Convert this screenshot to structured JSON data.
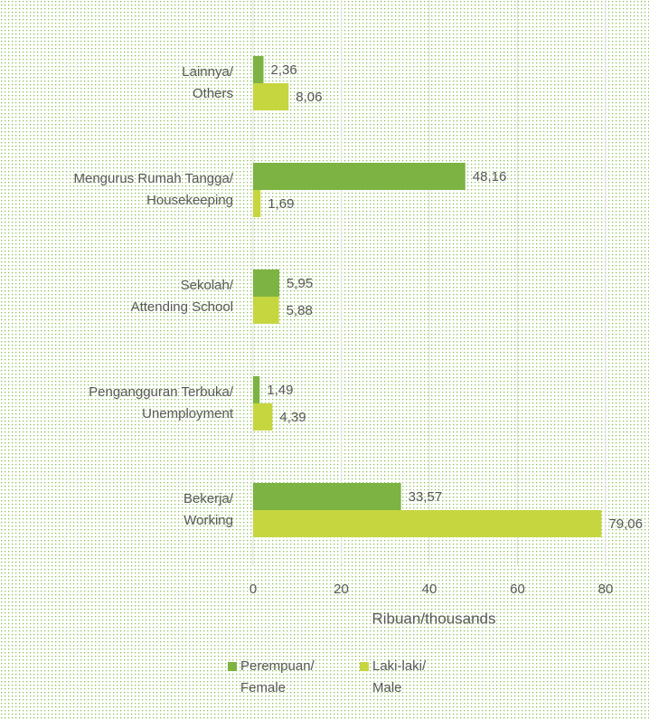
{
  "chart_data": {
    "type": "hbar",
    "categories": [
      "Lainnya/\nOthers",
      "Mengurus Rumah Tangga/\nHousekeeping",
      "Sekolah/\nAttending School",
      "Pengangguran Terbuka/\nUnemployment",
      "Bekerja/\nWorking"
    ],
    "series": [
      {
        "name": "Perempuan/\nFemale",
        "color": "#7cb342",
        "values": [
          2.36,
          48.16,
          5.95,
          1.49,
          33.57
        ],
        "value_labels": [
          "2,36",
          "48,16",
          "5,95",
          "1,49",
          "33,57"
        ]
      },
      {
        "name": "Laki-laki/\nMale",
        "color": "#c6d63f",
        "values": [
          8.06,
          1.69,
          5.88,
          4.39,
          79.06
        ],
        "value_labels": [
          "8,06",
          "1,69",
          "5,88",
          "4,39",
          "79,06"
        ]
      }
    ],
    "xlabel": "Ribuan/thousands",
    "xlim": [
      0,
      80
    ],
    "xticks": [
      0,
      20,
      40,
      60,
      80
    ],
    "grid": true
  }
}
